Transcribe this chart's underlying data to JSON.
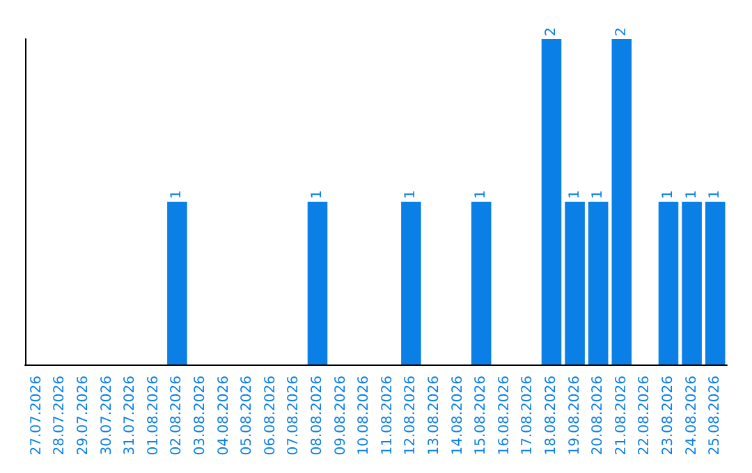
{
  "chart_data": {
    "type": "bar",
    "categories": [
      "27.07.2026",
      "28.07.2026",
      "29.07.2026",
      "30.07.2026",
      "31.07.2026",
      "01.08.2026",
      "02.08.2026",
      "03.08.2026",
      "04.08.2026",
      "05.08.2026",
      "06.08.2026",
      "07.08.2026",
      "08.08.2026",
      "09.08.2026",
      "10.08.2026",
      "11.08.2026",
      "12.08.2026",
      "13.08.2026",
      "14.08.2026",
      "15.08.2026",
      "16.08.2026",
      "17.08.2026",
      "18.08.2026",
      "19.08.2026",
      "20.08.2026",
      "21.08.2026",
      "22.08.2026",
      "23.08.2026",
      "24.08.2026",
      "25.08.2026"
    ],
    "values": [
      0,
      0,
      0,
      0,
      0,
      0,
      1,
      0,
      0,
      0,
      0,
      0,
      1,
      0,
      0,
      0,
      1,
      0,
      0,
      1,
      0,
      0,
      2,
      1,
      1,
      2,
      0,
      1,
      1,
      1
    ],
    "value_labels": [
      null,
      null,
      null,
      null,
      null,
      null,
      "1",
      null,
      null,
      null,
      null,
      null,
      "1",
      null,
      null,
      null,
      "1",
      null,
      null,
      "1",
      null,
      null,
      "2",
      "1",
      "1",
      "2",
      null,
      "1",
      "1",
      "1"
    ],
    "color": "#0a7fe6",
    "ylim": [
      0,
      2
    ],
    "tick_labels": "x",
    "grid": false
  }
}
